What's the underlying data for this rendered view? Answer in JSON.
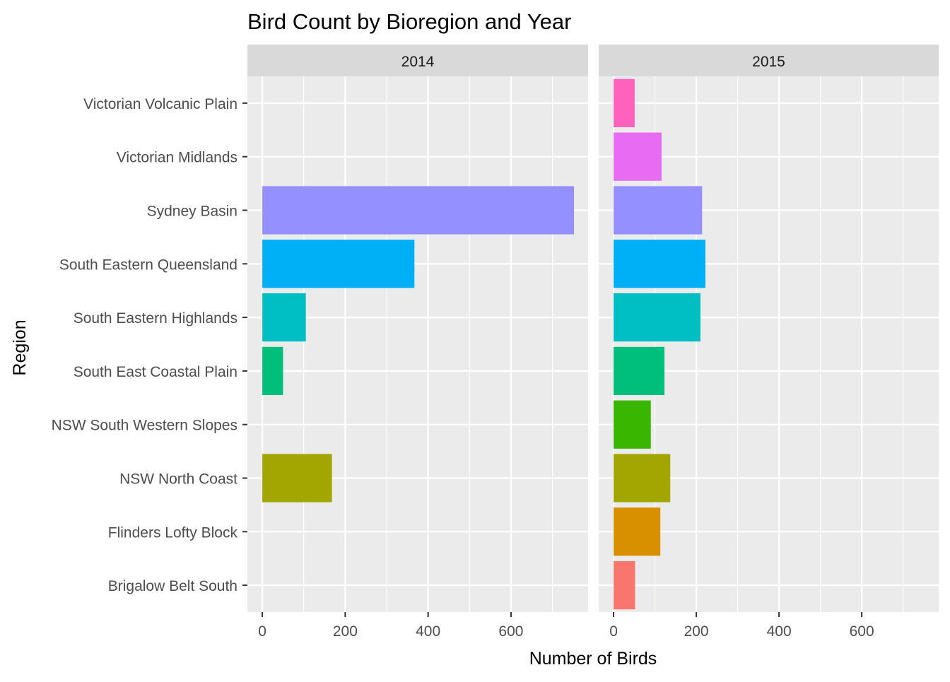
{
  "chart_data": {
    "type": "bar",
    "orientation": "horizontal",
    "faceted": true,
    "title": "Bird Count by Bioregion and Year",
    "xlabel": "Number of Birds",
    "ylabel": "Region",
    "xlim": [
      -36,
      786
    ],
    "xticks": [
      0,
      200,
      400,
      600
    ],
    "grid": true,
    "legend": "none",
    "categories": [
      "Brigalow Belt South",
      "Flinders Lofty Block",
      "NSW North Coast",
      "NSW South Western Slopes",
      "South East Coastal Plain",
      "South Eastern Highlands",
      "South Eastern Queensland",
      "Sydney Basin",
      "Victorian Midlands",
      "Victorian Volcanic Plain"
    ],
    "colors": [
      "#F8766D",
      "#D89000",
      "#A3A500",
      "#39B600",
      "#00BF7D",
      "#00BFC4",
      "#00B0F6",
      "#9590FF",
      "#E76BF3",
      "#FF62BC"
    ],
    "panels": [
      {
        "label": "2014",
        "values": [
          null,
          null,
          168,
          null,
          50,
          105,
          367,
          752,
          null,
          null
        ]
      },
      {
        "label": "2015",
        "values": [
          52,
          113,
          137,
          90,
          123,
          210,
          222,
          214,
          116,
          51
        ]
      }
    ]
  }
}
